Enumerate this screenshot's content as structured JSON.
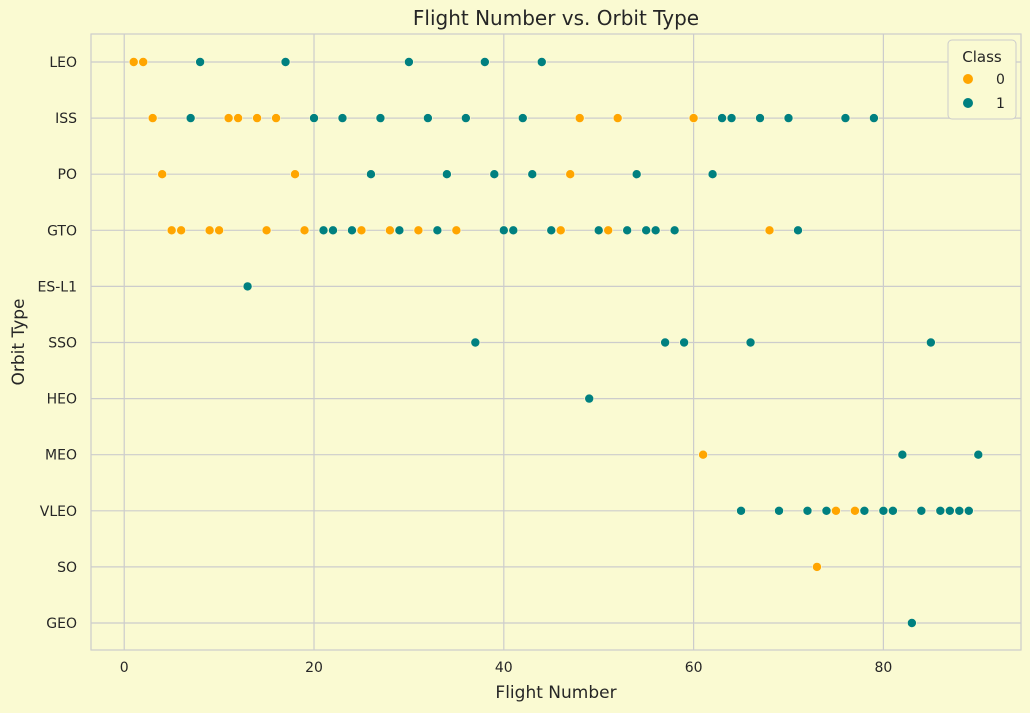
{
  "chart_data": {
    "type": "scatter",
    "title": "Flight Number vs. Orbit Type",
    "xlabel": "Flight Number",
    "ylabel": "Orbit Type",
    "xlim": [
      -3.5,
      94.5
    ],
    "xticks": [
      0,
      20,
      40,
      60,
      80
    ],
    "categories": [
      "LEO",
      "ISS",
      "PO",
      "GTO",
      "ES-L1",
      "SSO",
      "HEO",
      "MEO",
      "VLEO",
      "SO",
      "GEO"
    ],
    "grid": true,
    "legend": {
      "title": "Class",
      "position": "top-right"
    },
    "series": [
      {
        "name": "0",
        "color": "#FFA500",
        "points": [
          [
            1,
            "LEO"
          ],
          [
            2,
            "LEO"
          ],
          [
            3,
            "ISS"
          ],
          [
            11,
            "ISS"
          ],
          [
            12,
            "ISS"
          ],
          [
            14,
            "ISS"
          ],
          [
            16,
            "ISS"
          ],
          [
            48,
            "ISS"
          ],
          [
            52,
            "ISS"
          ],
          [
            60,
            "ISS"
          ],
          [
            4,
            "PO"
          ],
          [
            18,
            "PO"
          ],
          [
            47,
            "PO"
          ],
          [
            5,
            "GTO"
          ],
          [
            6,
            "GTO"
          ],
          [
            9,
            "GTO"
          ],
          [
            10,
            "GTO"
          ],
          [
            15,
            "GTO"
          ],
          [
            19,
            "GTO"
          ],
          [
            25,
            "GTO"
          ],
          [
            28,
            "GTO"
          ],
          [
            31,
            "GTO"
          ],
          [
            35,
            "GTO"
          ],
          [
            46,
            "GTO"
          ],
          [
            51,
            "GTO"
          ],
          [
            68,
            "GTO"
          ],
          [
            61,
            "MEO"
          ],
          [
            75,
            "VLEO"
          ],
          [
            77,
            "VLEO"
          ],
          [
            73,
            "SO"
          ]
        ]
      },
      {
        "name": "1",
        "color": "#008080",
        "points": [
          [
            8,
            "LEO"
          ],
          [
            17,
            "LEO"
          ],
          [
            30,
            "LEO"
          ],
          [
            38,
            "LEO"
          ],
          [
            44,
            "LEO"
          ],
          [
            7,
            "ISS"
          ],
          [
            20,
            "ISS"
          ],
          [
            23,
            "ISS"
          ],
          [
            27,
            "ISS"
          ],
          [
            32,
            "ISS"
          ],
          [
            36,
            "ISS"
          ],
          [
            42,
            "ISS"
          ],
          [
            63,
            "ISS"
          ],
          [
            64,
            "ISS"
          ],
          [
            67,
            "ISS"
          ],
          [
            70,
            "ISS"
          ],
          [
            76,
            "ISS"
          ],
          [
            79,
            "ISS"
          ],
          [
            26,
            "PO"
          ],
          [
            34,
            "PO"
          ],
          [
            39,
            "PO"
          ],
          [
            43,
            "PO"
          ],
          [
            54,
            "PO"
          ],
          [
            62,
            "PO"
          ],
          [
            21,
            "GTO"
          ],
          [
            22,
            "GTO"
          ],
          [
            24,
            "GTO"
          ],
          [
            29,
            "GTO"
          ],
          [
            33,
            "GTO"
          ],
          [
            40,
            "GTO"
          ],
          [
            41,
            "GTO"
          ],
          [
            45,
            "GTO"
          ],
          [
            50,
            "GTO"
          ],
          [
            53,
            "GTO"
          ],
          [
            55,
            "GTO"
          ],
          [
            56,
            "GTO"
          ],
          [
            58,
            "GTO"
          ],
          [
            71,
            "GTO"
          ],
          [
            13,
            "ES-L1"
          ],
          [
            37,
            "SSO"
          ],
          [
            57,
            "SSO"
          ],
          [
            59,
            "SSO"
          ],
          [
            66,
            "SSO"
          ],
          [
            85,
            "SSO"
          ],
          [
            49,
            "HEO"
          ],
          [
            82,
            "MEO"
          ],
          [
            90,
            "MEO"
          ],
          [
            65,
            "VLEO"
          ],
          [
            69,
            "VLEO"
          ],
          [
            72,
            "VLEO"
          ],
          [
            74,
            "VLEO"
          ],
          [
            78,
            "VLEO"
          ],
          [
            80,
            "VLEO"
          ],
          [
            81,
            "VLEO"
          ],
          [
            84,
            "VLEO"
          ],
          [
            86,
            "VLEO"
          ],
          [
            87,
            "VLEO"
          ],
          [
            88,
            "VLEO"
          ],
          [
            89,
            "VLEO"
          ],
          [
            83,
            "GEO"
          ]
        ]
      }
    ]
  }
}
